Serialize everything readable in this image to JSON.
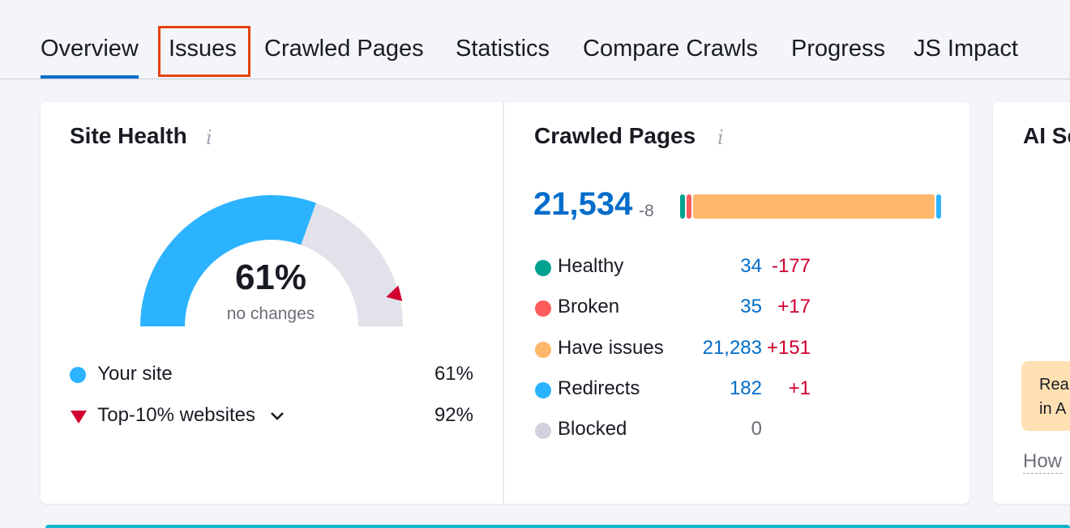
{
  "tabs": [
    {
      "label": "Overview",
      "active": true
    },
    {
      "label": "Issues",
      "highlighted": true
    },
    {
      "label": "Crawled Pages"
    },
    {
      "label": "Statistics"
    },
    {
      "label": "Compare Crawls"
    },
    {
      "label": "Progress"
    },
    {
      "label": "JS Impact"
    }
  ],
  "site_health": {
    "title": "Site Health",
    "info": "i",
    "score": "61%",
    "score_value": 61,
    "top10_value": 92,
    "subtitle": "no changes",
    "legend": [
      {
        "label": "Your site",
        "value": "61%",
        "color": "#2bb3ff"
      },
      {
        "label": "Top-10% websites",
        "value": "92%",
        "color": "#d1002f"
      }
    ]
  },
  "crawled_pages": {
    "title": "Crawled Pages",
    "info": "i",
    "total": "21,534",
    "total_delta": "-8",
    "rows": [
      {
        "label": "Healthy",
        "count": "34",
        "delta": "-177",
        "color": "#00a38f",
        "value": 34
      },
      {
        "label": "Broken",
        "count": "35",
        "delta": "+17",
        "color": "#ff5c5c",
        "value": 35
      },
      {
        "label": "Have issues",
        "count": "21,283",
        "delta": "+151",
        "color": "#ffb86b",
        "value": 21283
      },
      {
        "label": "Redirects",
        "count": "182",
        "delta": "+1",
        "color": "#2bb3ff",
        "value": 182
      },
      {
        "label": "Blocked",
        "count": "0",
        "delta": "",
        "color": "#d0d1dc",
        "value": 0
      }
    ]
  },
  "ai_card": {
    "title": "AI Se",
    "note_line1": "Rea",
    "note_line2": "in A",
    "link": "How"
  },
  "colors": {
    "accent": "#006dca",
    "highlight_box": "#e4420c",
    "negative": "#d1002f",
    "gauge_track": "#e1e2ea"
  }
}
